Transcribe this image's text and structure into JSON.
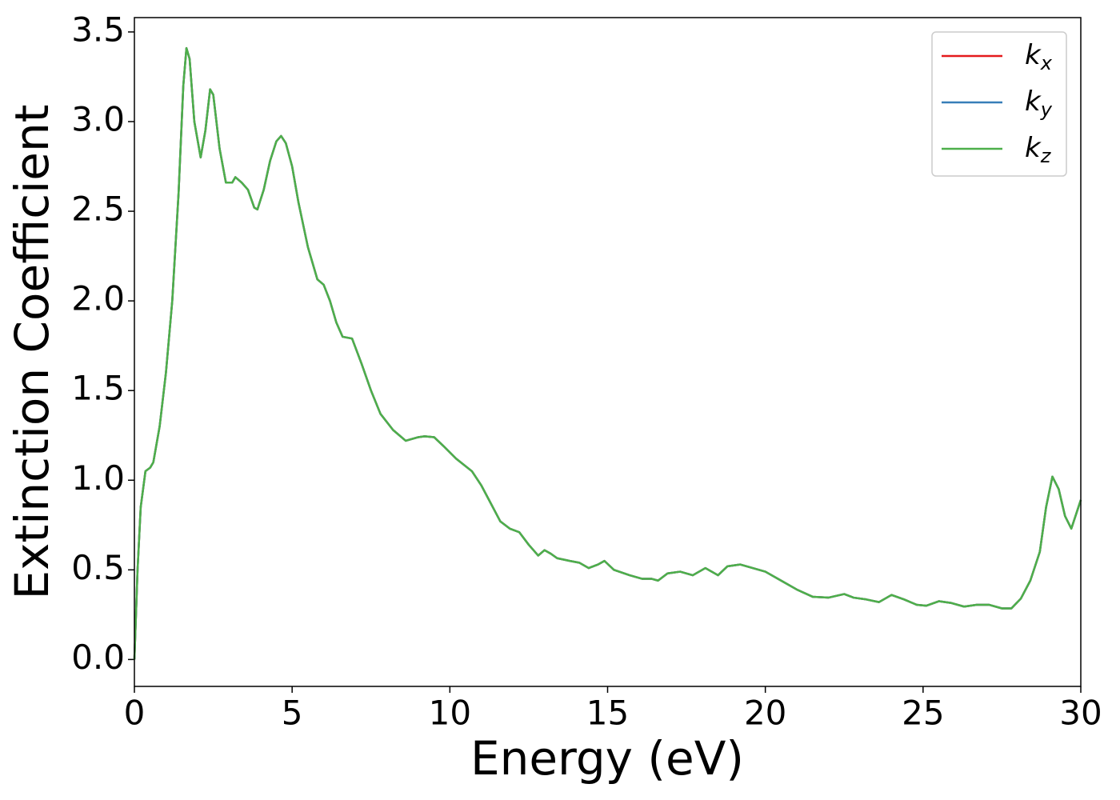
{
  "chart_data": {
    "type": "line",
    "xlabel": "Energy (eV)",
    "ylabel": "Extinction Coefficient",
    "x": [
      0,
      0.1,
      0.2,
      0.35,
      0.5,
      0.6,
      0.8,
      1.0,
      1.2,
      1.4,
      1.55,
      1.65,
      1.75,
      1.9,
      2.1,
      2.25,
      2.4,
      2.5,
      2.7,
      2.9,
      3.1,
      3.2,
      3.4,
      3.6,
      3.8,
      3.9,
      4.1,
      4.3,
      4.5,
      4.65,
      4.8,
      5.0,
      5.2,
      5.5,
      5.8,
      6.0,
      6.2,
      6.4,
      6.6,
      6.9,
      7.2,
      7.5,
      7.8,
      8.2,
      8.6,
      9.0,
      9.2,
      9.5,
      9.8,
      10.2,
      10.7,
      11.0,
      11.3,
      11.6,
      11.9,
      12.2,
      12.5,
      12.8,
      13.0,
      13.2,
      13.4,
      13.8,
      14.1,
      14.4,
      14.7,
      14.9,
      15.2,
      15.7,
      16.1,
      16.4,
      16.6,
      16.9,
      17.3,
      17.7,
      18.1,
      18.5,
      18.8,
      19.2,
      19.6,
      20.0,
      20.5,
      21.0,
      21.5,
      22.0,
      22.5,
      22.8,
      23.2,
      23.6,
      24.0,
      24.4,
      24.8,
      25.1,
      25.5,
      25.9,
      26.3,
      26.7,
      27.1,
      27.5,
      27.8,
      28.1,
      28.4,
      28.7,
      28.9,
      29.1,
      29.3,
      29.5,
      29.7,
      30.0
    ],
    "series": [
      {
        "name": "kx",
        "color": "#e41a1c",
        "values": [
          0,
          0.5,
          0.85,
          1.05,
          1.07,
          1.1,
          1.3,
          1.6,
          2.0,
          2.6,
          3.2,
          3.41,
          3.35,
          3.0,
          2.8,
          2.95,
          3.18,
          3.15,
          2.85,
          2.66,
          2.66,
          2.69,
          2.66,
          2.62,
          2.52,
          2.51,
          2.62,
          2.78,
          2.89,
          2.92,
          2.88,
          2.75,
          2.55,
          2.3,
          2.12,
          2.09,
          2.0,
          1.88,
          1.8,
          1.79,
          1.65,
          1.5,
          1.37,
          1.28,
          1.22,
          1.24,
          1.245,
          1.24,
          1.19,
          1.12,
          1.05,
          0.97,
          0.87,
          0.77,
          0.73,
          0.71,
          0.64,
          0.58,
          0.61,
          0.59,
          0.565,
          0.55,
          0.54,
          0.51,
          0.53,
          0.55,
          0.5,
          0.47,
          0.45,
          0.45,
          0.44,
          0.48,
          0.49,
          0.47,
          0.51,
          0.47,
          0.52,
          0.53,
          0.51,
          0.49,
          0.44,
          0.39,
          0.35,
          0.345,
          0.365,
          0.345,
          0.335,
          0.32,
          0.36,
          0.335,
          0.305,
          0.3,
          0.325,
          0.315,
          0.295,
          0.305,
          0.305,
          0.285,
          0.285,
          0.34,
          0.44,
          0.6,
          0.85,
          1.02,
          0.95,
          0.8,
          0.73,
          0.89
        ]
      },
      {
        "name": "ky",
        "color": "#377eb8",
        "values": [
          0,
          0.5,
          0.85,
          1.05,
          1.07,
          1.1,
          1.3,
          1.6,
          2.0,
          2.6,
          3.2,
          3.41,
          3.35,
          3.0,
          2.8,
          2.95,
          3.18,
          3.15,
          2.85,
          2.66,
          2.66,
          2.69,
          2.66,
          2.62,
          2.52,
          2.51,
          2.62,
          2.78,
          2.89,
          2.92,
          2.88,
          2.75,
          2.55,
          2.3,
          2.12,
          2.09,
          2.0,
          1.88,
          1.8,
          1.79,
          1.65,
          1.5,
          1.37,
          1.28,
          1.22,
          1.24,
          1.245,
          1.24,
          1.19,
          1.12,
          1.05,
          0.97,
          0.87,
          0.77,
          0.73,
          0.71,
          0.64,
          0.58,
          0.61,
          0.59,
          0.565,
          0.55,
          0.54,
          0.51,
          0.53,
          0.55,
          0.5,
          0.47,
          0.45,
          0.45,
          0.44,
          0.48,
          0.49,
          0.47,
          0.51,
          0.47,
          0.52,
          0.53,
          0.51,
          0.49,
          0.44,
          0.39,
          0.35,
          0.345,
          0.365,
          0.345,
          0.335,
          0.32,
          0.36,
          0.335,
          0.305,
          0.3,
          0.325,
          0.315,
          0.295,
          0.305,
          0.305,
          0.285,
          0.285,
          0.34,
          0.44,
          0.6,
          0.85,
          1.02,
          0.95,
          0.8,
          0.73,
          0.89
        ]
      },
      {
        "name": "kz",
        "color": "#4daf4a",
        "values": [
          0,
          0.5,
          0.85,
          1.05,
          1.07,
          1.1,
          1.3,
          1.6,
          2.0,
          2.6,
          3.2,
          3.41,
          3.35,
          3.0,
          2.8,
          2.95,
          3.18,
          3.15,
          2.85,
          2.66,
          2.66,
          2.69,
          2.66,
          2.62,
          2.52,
          2.51,
          2.62,
          2.78,
          2.89,
          2.92,
          2.88,
          2.75,
          2.55,
          2.3,
          2.12,
          2.09,
          2.0,
          1.88,
          1.8,
          1.79,
          1.65,
          1.5,
          1.37,
          1.28,
          1.22,
          1.24,
          1.245,
          1.24,
          1.19,
          1.12,
          1.05,
          0.97,
          0.87,
          0.77,
          0.73,
          0.71,
          0.64,
          0.58,
          0.61,
          0.59,
          0.565,
          0.55,
          0.54,
          0.51,
          0.53,
          0.55,
          0.5,
          0.47,
          0.45,
          0.45,
          0.44,
          0.48,
          0.49,
          0.47,
          0.51,
          0.47,
          0.52,
          0.53,
          0.51,
          0.49,
          0.44,
          0.39,
          0.35,
          0.345,
          0.365,
          0.345,
          0.335,
          0.32,
          0.36,
          0.335,
          0.305,
          0.3,
          0.325,
          0.315,
          0.295,
          0.305,
          0.305,
          0.285,
          0.285,
          0.34,
          0.44,
          0.6,
          0.85,
          1.02,
          0.95,
          0.8,
          0.73,
          0.89
        ]
      }
    ],
    "xlim": [
      0,
      30
    ],
    "xticks": [
      0,
      5,
      10,
      15,
      20,
      25,
      30
    ],
    "ylim": [
      -0.15,
      3.58
    ],
    "yticks": [
      {
        "value": 0,
        "label": "0.0"
      },
      0.5,
      {
        "value": 1,
        "label": "1.0"
      },
      1.5,
      {
        "value": 2,
        "label": "2.0"
      },
      2.5,
      {
        "value": 3,
        "label": "3.0"
      },
      3.5
    ],
    "legend": "upper right"
  }
}
